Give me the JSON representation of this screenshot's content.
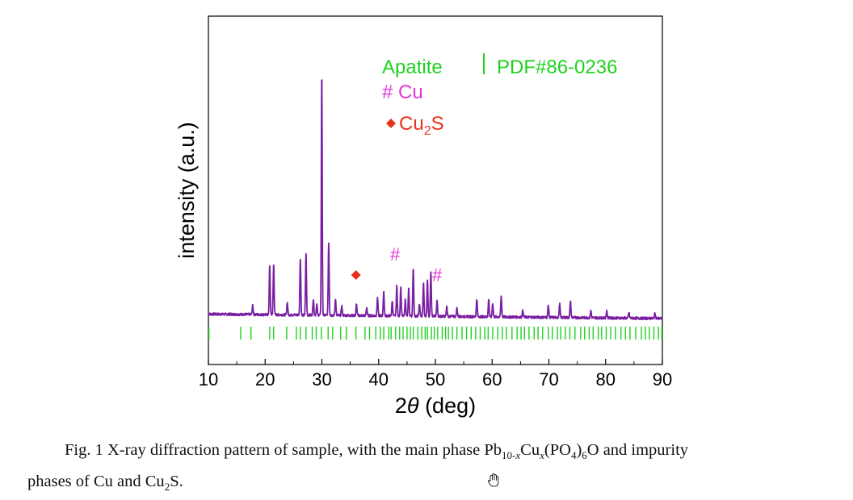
{
  "chart_data": {
    "type": "line",
    "title": "",
    "xlabel_prefix": "2",
    "xlabel_theta": "θ",
    "xlabel_suffix": " (deg)",
    "ylabel": "intensity (a.u.)",
    "xlim": [
      10,
      90
    ],
    "ylim": [
      0,
      100
    ],
    "x_ticks": [
      "10",
      "20",
      "30",
      "40",
      "50",
      "60",
      "70",
      "80",
      "90"
    ],
    "y_ticks": [],
    "grid": false,
    "legend_position": "top-right",
    "legend": {
      "apatite": "Apatite",
      "pdf_ref": "PDF#86-0236",
      "cu": "# Cu",
      "cu2s_base": "Cu",
      "cu2s_sub": "2",
      "cu2s_tail": "S"
    },
    "series": [
      {
        "name": "",
        "color": "#7a1fa2",
        "baseline": 14.5,
        "peaks": [
          {
            "x": 17.8,
            "y": 3.2
          },
          {
            "x": 20.8,
            "y": 17.6
          },
          {
            "x": 21.5,
            "y": 18.5
          },
          {
            "x": 23.9,
            "y": 4.5
          },
          {
            "x": 26.2,
            "y": 20.5
          },
          {
            "x": 27.2,
            "y": 22.5
          },
          {
            "x": 28.5,
            "y": 6.0
          },
          {
            "x": 29.1,
            "y": 4.0
          },
          {
            "x": 29.98,
            "y": 89.0
          },
          {
            "x": 31.2,
            "y": 26.5
          },
          {
            "x": 32.4,
            "y": 6.0
          },
          {
            "x": 33.5,
            "y": 3.5
          },
          {
            "x": 36.1,
            "y": 4.0
          },
          {
            "x": 37.9,
            "y": 3.0
          },
          {
            "x": 39.8,
            "y": 6.5
          },
          {
            "x": 40.9,
            "y": 9.0
          },
          {
            "x": 42.4,
            "y": 5.5
          },
          {
            "x": 43.2,
            "y": 11.0
          },
          {
            "x": 43.9,
            "y": 10.5
          },
          {
            "x": 44.7,
            "y": 6.0
          },
          {
            "x": 45.3,
            "y": 10.0
          },
          {
            "x": 46.1,
            "y": 17.5
          },
          {
            "x": 47.2,
            "y": 4.5
          },
          {
            "x": 47.9,
            "y": 12.0
          },
          {
            "x": 48.6,
            "y": 13.0
          },
          {
            "x": 49.2,
            "y": 16.5
          },
          {
            "x": 50.3,
            "y": 6.0
          },
          {
            "x": 52.0,
            "y": 3.5
          },
          {
            "x": 53.8,
            "y": 3.0
          },
          {
            "x": 57.3,
            "y": 6.5
          },
          {
            "x": 59.4,
            "y": 6.5
          },
          {
            "x": 60.1,
            "y": 5.0
          },
          {
            "x": 61.6,
            "y": 7.5
          },
          {
            "x": 65.4,
            "y": 2.5
          },
          {
            "x": 69.9,
            "y": 4.5
          },
          {
            "x": 71.9,
            "y": 5.0
          },
          {
            "x": 73.8,
            "y": 6.0
          },
          {
            "x": 77.4,
            "y": 2.5
          },
          {
            "x": 80.2,
            "y": 2.5
          },
          {
            "x": 84.1,
            "y": 2.0
          },
          {
            "x": 88.7,
            "y": 2.0
          }
        ]
      }
    ],
    "reference_lines_x": [
      10.1,
      15.7,
      17.5,
      20.8,
      21.5,
      23.8,
      25.5,
      26.2,
      27.2,
      28.3,
      29.0,
      29.9,
      31.1,
      31.9,
      33.3,
      34.3,
      36.0,
      37.6,
      38.4,
      39.5,
      40.3,
      40.9,
      41.8,
      42.2,
      43.0,
      43.7,
      44.3,
      45.0,
      45.6,
      46.1,
      46.9,
      47.6,
      48.2,
      48.6,
      49.3,
      49.8,
      50.4,
      51.2,
      51.8,
      52.3,
      53.0,
      53.8,
      54.7,
      55.5,
      56.3,
      57.1,
      57.9,
      58.7,
      59.3,
      60.1,
      61.0,
      61.8,
      62.5,
      63.5,
      64.4,
      65.1,
      65.7,
      66.5,
      67.4,
      68.1,
      68.9,
      69.9,
      70.6,
      71.5,
      72.1,
      72.9,
      73.7,
      74.6,
      75.6,
      76.3,
      77.1,
      77.8,
      78.7,
      79.3,
      80.1,
      80.9,
      81.7,
      82.7,
      83.5,
      84.3,
      85.3,
      86.3,
      87.0,
      87.7,
      88.5,
      89.3,
      89.9
    ],
    "markers": [
      {
        "type": "diamond",
        "label": "",
        "x": 36.0,
        "y": 18.3,
        "color": "#e8311a"
      },
      {
        "type": "hash",
        "label": "#",
        "x": 42.9,
        "y": 26.0,
        "color": "#e535d8"
      },
      {
        "type": "hash",
        "label": "#",
        "x": 50.3,
        "y": 18.5,
        "color": "#e535d8"
      }
    ],
    "colors": {
      "apatite": "#1fd11f",
      "cu": "#e535d8",
      "cu2s": "#e8311a",
      "curve": "#7a1fa2"
    }
  },
  "caption": {
    "line1_prefix": "Fig. 1 X-ray diffraction pattern of sample, with the main phase Pb",
    "sub_10x": "10-",
    "sub_x1": "x",
    "cu_text": "Cu",
    "sub_x2": "x",
    "po4_text": "(PO",
    "sub_4": "4",
    "close_paren": ")",
    "sub_6": "6",
    "line1_suffix": "O and impurity",
    "line2_prefix": "phases of Cu and Cu",
    "sub_2": "2",
    "line2_suffix": "S."
  },
  "icons": {
    "cursor": "hand-cursor-icon"
  }
}
